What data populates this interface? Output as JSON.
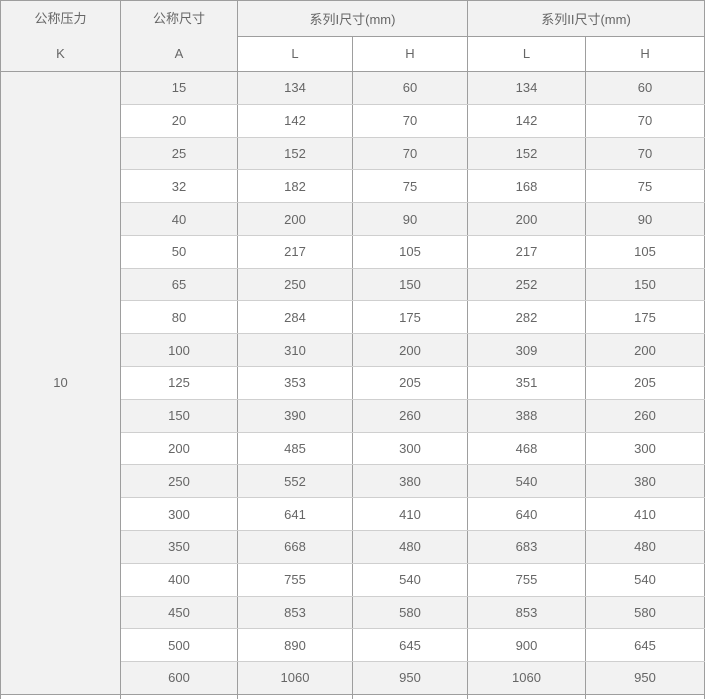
{
  "table": {
    "header": {
      "pressure_title": "公称压力",
      "pressure_symbol": "K",
      "size_title": "公称尺寸",
      "size_symbol": "A",
      "series1_title": "系列I尺寸(mm)",
      "series2_title": "系列II尺寸(mm)",
      "col_l": "L",
      "col_h": "H"
    },
    "pressure_value": "10",
    "rows": [
      {
        "a": "15",
        "l1": "134",
        "h1": "60",
        "l2": "134",
        "h2": "60"
      },
      {
        "a": "20",
        "l1": "142",
        "h1": "70",
        "l2": "142",
        "h2": "70"
      },
      {
        "a": "25",
        "l1": "152",
        "h1": "70",
        "l2": "152",
        "h2": "70"
      },
      {
        "a": "32",
        "l1": "182",
        "h1": "75",
        "l2": "168",
        "h2": "75"
      },
      {
        "a": "40",
        "l1": "200",
        "h1": "90",
        "l2": "200",
        "h2": "90"
      },
      {
        "a": "50",
        "l1": "217",
        "h1": "105",
        "l2": "217",
        "h2": "105"
      },
      {
        "a": "65",
        "l1": "250",
        "h1": "150",
        "l2": "252",
        "h2": "150"
      },
      {
        "a": "80",
        "l1": "284",
        "h1": "175",
        "l2": "282",
        "h2": "175"
      },
      {
        "a": "100",
        "l1": "310",
        "h1": "200",
        "l2": "309",
        "h2": "200"
      },
      {
        "a": "125",
        "l1": "353",
        "h1": "205",
        "l2": "351",
        "h2": "205"
      },
      {
        "a": "150",
        "l1": "390",
        "h1": "260",
        "l2": "388",
        "h2": "260"
      },
      {
        "a": "200",
        "l1": "485",
        "h1": "300",
        "l2": "468",
        "h2": "300"
      },
      {
        "a": "250",
        "l1": "552",
        "h1": "380",
        "l2": "540",
        "h2": "380"
      },
      {
        "a": "300",
        "l1": "641",
        "h1": "410",
        "l2": "640",
        "h2": "410"
      },
      {
        "a": "350",
        "l1": "668",
        "h1": "480",
        "l2": "683",
        "h2": "480"
      },
      {
        "a": "400",
        "l1": "755",
        "h1": "540",
        "l2": "755",
        "h2": "540"
      },
      {
        "a": "450",
        "l1": "853",
        "h1": "580",
        "l2": "853",
        "h2": "580"
      },
      {
        "a": "500",
        "l1": "890",
        "h1": "645",
        "l2": "900",
        "h2": "645"
      },
      {
        "a": "600",
        "l1": "1060",
        "h1": "950",
        "l2": "1060",
        "h2": "950"
      }
    ]
  },
  "colors": {
    "row_alt_background": "#f2f2f2",
    "row_background": "#ffffff",
    "border_strong": "#9e9e9e",
    "border_light": "#cfcfcf",
    "text": "#666666"
  }
}
